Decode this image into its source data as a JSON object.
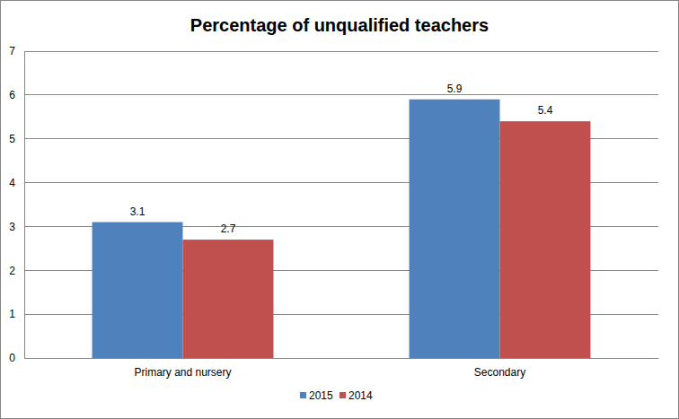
{
  "chart_data": {
    "type": "bar",
    "title": "Percentage of unqualified teachers",
    "categories": [
      "Primary and nursery",
      "Secondary"
    ],
    "series": [
      {
        "name": "2015",
        "color": "#4f81bd",
        "values": [
          3.1,
          5.9
        ]
      },
      {
        "name": "2014",
        "color": "#c0504d",
        "values": [
          2.7,
          5.4
        ]
      }
    ],
    "ylim": [
      0,
      7
    ],
    "yticks": [
      0,
      1,
      2,
      3,
      4,
      5,
      6,
      7
    ],
    "grid": true,
    "data_labels": true,
    "legend": "bottom"
  }
}
